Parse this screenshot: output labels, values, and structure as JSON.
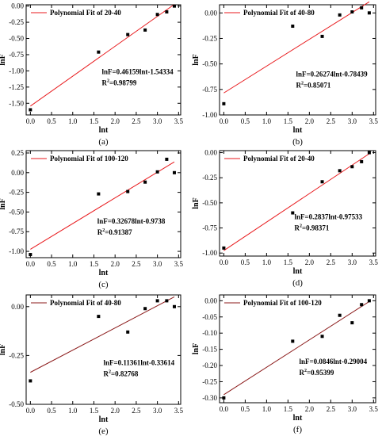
{
  "chart_data": [
    {
      "type": "scatter",
      "panel_label": "(a)",
      "legend": "Polynomial Fit of 20-40",
      "xlabel": "lnt",
      "ylabel": "lnF",
      "xlim": [
        -0.1,
        3.55
      ],
      "ylim": [
        -1.68,
        0.02
      ],
      "xticks": [
        0.0,
        0.5,
        1.0,
        1.5,
        2.0,
        2.5,
        3.0,
        3.5
      ],
      "yticks": [
        0.0,
        -0.25,
        -0.5,
        -0.75,
        -1.0,
        -1.25,
        -1.5
      ],
      "ytick_labels": [
        "0.00",
        "-0.25",
        "-0.50",
        "-0.75",
        "-1.00",
        "-1.25",
        "-1.50"
      ],
      "points": [
        [
          0.0,
          -1.6
        ],
        [
          1.61,
          -0.71
        ],
        [
          2.3,
          -0.44
        ],
        [
          2.71,
          -0.37
        ],
        [
          3.0,
          -0.13
        ],
        [
          3.22,
          -0.09
        ],
        [
          3.4,
          0.0
        ]
      ],
      "fit": {
        "slope": 0.46159,
        "intercept": -1.54334,
        "x": [
          0.0,
          3.4
        ],
        "color": "#e8191c"
      },
      "equation": "lnF=0.46159lnt-1.54334",
      "r2_label": "R",
      "r2_value": "=0.98799"
    },
    {
      "type": "scatter",
      "panel_label": "(b)",
      "legend": "Polynomial Fit of 40-80",
      "xlabel": "lnt",
      "ylabel": "lnF",
      "xlim": [
        -0.1,
        3.55
      ],
      "ylim": [
        -1.0,
        0.08
      ],
      "xticks": [
        0.0,
        0.5,
        1.0,
        1.5,
        2.0,
        2.5,
        3.0,
        3.5
      ],
      "yticks": [
        0.0,
        -0.25,
        -0.5,
        -0.75,
        -1.0
      ],
      "ytick_labels": [
        "0.00",
        "-0.25",
        "-0.50",
        "-0.75",
        "-1.00"
      ],
      "points": [
        [
          0.0,
          -0.89
        ],
        [
          1.61,
          -0.13
        ],
        [
          2.3,
          -0.23
        ],
        [
          2.71,
          -0.02
        ],
        [
          3.0,
          0.01
        ],
        [
          3.22,
          0.05
        ],
        [
          3.4,
          0.0
        ]
      ],
      "fit": {
        "slope": 0.26274,
        "intercept": -0.78439,
        "x": [
          0.0,
          3.4
        ],
        "color": "#e8191c"
      },
      "equation": "lnF=0.26274lnt-0.78439",
      "r2_label": "R",
      "r2_value": "=0.85071"
    },
    {
      "type": "scatter",
      "panel_label": "(c)",
      "legend": "Polynomial Fit of 100-120",
      "xlabel": "lnt",
      "ylabel": "lnF",
      "xlim": [
        -0.1,
        3.55
      ],
      "ylim": [
        -1.08,
        0.28
      ],
      "xticks": [
        0.0,
        0.5,
        1.0,
        1.5,
        2.0,
        2.5,
        3.0,
        3.5
      ],
      "yticks": [
        0.25,
        0.0,
        -0.25,
        -0.5,
        -0.75,
        -1.0
      ],
      "ytick_labels": [
        "0.25",
        "0.00",
        "-0.25",
        "-0.50",
        "-0.75",
        "-1.00"
      ],
      "points": [
        [
          0.0,
          -1.04
        ],
        [
          1.61,
          -0.27
        ],
        [
          2.3,
          -0.24
        ],
        [
          2.71,
          -0.12
        ],
        [
          3.0,
          0.01
        ],
        [
          3.22,
          0.17
        ],
        [
          3.4,
          0.0
        ]
      ],
      "fit": {
        "slope": 0.32678,
        "intercept": -0.9738,
        "x": [
          0.0,
          3.4
        ],
        "color": "#e8191c"
      },
      "equation": "lnF=0.32678lnt-0.9738",
      "r2_label": "R",
      "r2_value": "=0.91387"
    },
    {
      "type": "scatter",
      "panel_label": "(d)",
      "legend": "Polynomial Fit of 20-40",
      "xlabel": "lnt",
      "ylabel": "lnF",
      "xlim": [
        -0.1,
        3.55
      ],
      "ylim": [
        -1.03,
        0.02
      ],
      "xticks": [
        0.0,
        0.5,
        1.0,
        1.5,
        2.0,
        2.5,
        3.0,
        3.5
      ],
      "yticks": [
        0.0,
        -0.25,
        -0.5,
        -0.75,
        -1.0
      ],
      "ytick_labels": [
        "0.00",
        "-0.25",
        "-0.50",
        "-0.75",
        "-1.00"
      ],
      "points": [
        [
          0.0,
          -0.95
        ],
        [
          1.61,
          -0.6
        ],
        [
          2.3,
          -0.29
        ],
        [
          2.71,
          -0.18
        ],
        [
          3.0,
          -0.14
        ],
        [
          3.22,
          -0.09
        ],
        [
          3.4,
          0.0
        ]
      ],
      "fit": {
        "slope": 0.2837,
        "intercept": -0.97533,
        "x": [
          0.0,
          3.4
        ],
        "color": "#e8191c"
      },
      "equation": "lnF=0.2837lnt-0.97533",
      "r2_label": "R",
      "r2_value": "=0.98371"
    },
    {
      "type": "scatter",
      "panel_label": "(e)",
      "legend": "Polynomial Fit of 40-80",
      "xlabel": "lnt",
      "ylabel": "lnF",
      "xlim": [
        -0.1,
        3.55
      ],
      "ylim": [
        -0.5,
        0.06
      ],
      "xticks": [
        0.0,
        0.5,
        1.0,
        1.5,
        2.0,
        2.5,
        3.0,
        3.5
      ],
      "yticks": [
        0.0,
        -0.25,
        -0.5
      ],
      "ytick_labels": [
        "0.00",
        "-0.25",
        "-0.50"
      ],
      "points": [
        [
          0.0,
          -0.38
        ],
        [
          1.61,
          -0.05
        ],
        [
          2.3,
          -0.13
        ],
        [
          2.71,
          -0.01
        ],
        [
          3.0,
          0.03
        ],
        [
          3.22,
          0.03
        ],
        [
          3.4,
          0.0
        ]
      ],
      "fit": {
        "slope": 0.11361,
        "intercept": -0.33614,
        "x": [
          0.0,
          3.4
        ],
        "color": "#8b1a1a"
      },
      "equation": "lnF=0.11361lnt-0.33614",
      "r2_label": "R",
      "r2_value": "=0.82768"
    },
    {
      "type": "scatter",
      "panel_label": "(f)",
      "legend": "Polynomial Fit of 100-120",
      "xlabel": "lnt",
      "ylabel": "lnF",
      "xlim": [
        -0.1,
        3.55
      ],
      "ylim": [
        -0.315,
        0.018
      ],
      "xticks": [
        0.0,
        0.5,
        1.0,
        1.5,
        2.0,
        2.5,
        3.0,
        3.5
      ],
      "yticks": [
        0.0,
        -0.05,
        -0.1,
        -0.15,
        -0.2,
        -0.25,
        -0.3
      ],
      "ytick_labels": [
        "0.00",
        "-0.05",
        "-0.10",
        "-0.15",
        "-0.20",
        "-0.25",
        "-0.30"
      ],
      "points": [
        [
          0.0,
          -0.3
        ],
        [
          1.61,
          -0.125
        ],
        [
          2.3,
          -0.11
        ],
        [
          2.71,
          -0.045
        ],
        [
          3.0,
          -0.068
        ],
        [
          3.22,
          -0.012
        ],
        [
          3.4,
          0.0
        ]
      ],
      "fit": {
        "slope": 0.0846,
        "intercept": -0.29004,
        "x": [
          0.0,
          3.4
        ],
        "color": "#8b1a1a"
      },
      "equation": "lnF=0.0846lnt-0.29004",
      "r2_label": "R",
      "r2_value": "=0.95399"
    }
  ]
}
